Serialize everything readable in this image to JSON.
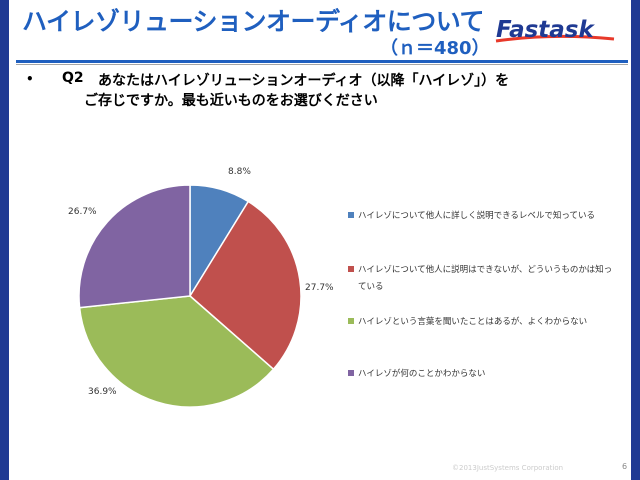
{
  "header": {
    "title": "ハイレゾリューションオーディオについて",
    "sample_size": "（ｎ＝480）",
    "logo": "Fastask",
    "logo_colors": {
      "text": "#1f3a93",
      "accent": "#e8392a"
    }
  },
  "question": {
    "bullet": "•",
    "number": "Q2",
    "line1": "あなたはハイレゾリューションオーディオ（以降「ハイレゾ」）を",
    "line2": "ご存じですか。最も近いものをお選びください"
  },
  "chart_data": {
    "type": "pie",
    "categories": [
      "ハイレゾについて他人に詳しく説明できるレベルで知っている",
      "ハイレゾについて他人に説明はできないが、どういうものかは知っている",
      "ハイレゾという言葉を聞いたことはあるが、よくわからない",
      "ハイレゾが何のことかわからない"
    ],
    "values": [
      8.8,
      27.7,
      36.9,
      26.7
    ],
    "data_labels": [
      "8.8%",
      "27.7%",
      "36.9%",
      "26.7%"
    ],
    "colors": [
      "#4f81bd",
      "#c0504d",
      "#9bbb59",
      "#8064a2"
    ],
    "legend_position": "right"
  },
  "footer": {
    "copyright": "©2013JustSystems Corporation",
    "page_number": "6"
  }
}
